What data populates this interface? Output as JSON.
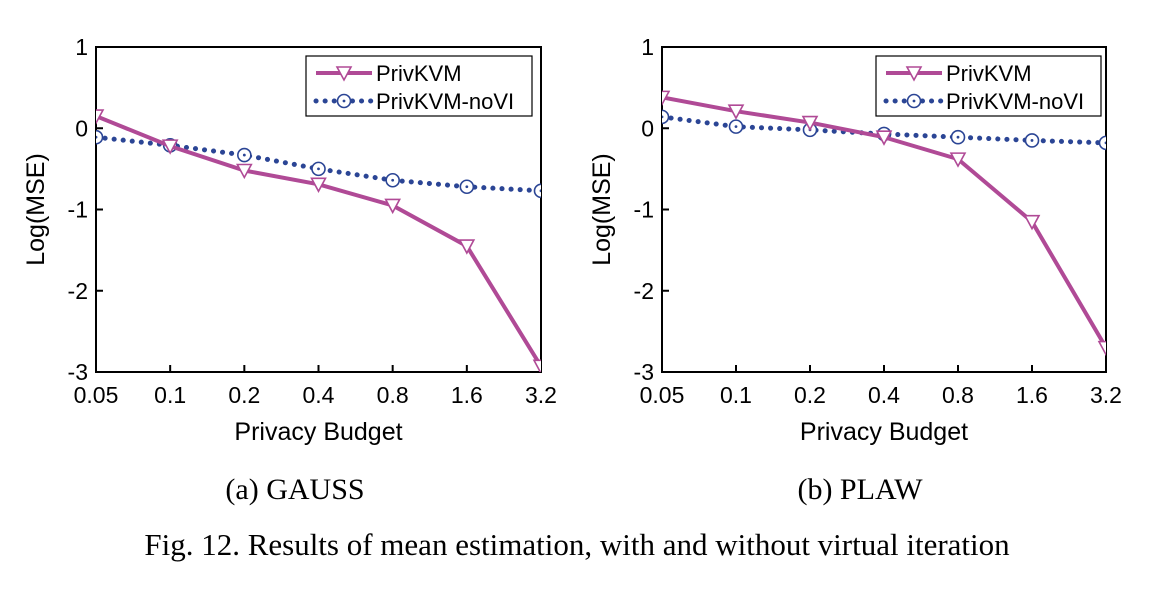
{
  "figure_caption": "Fig. 12.  Results of mean estimation, with and without virtual iteration",
  "colors": {
    "privkvm": "#b04a96",
    "privkvm_novi": "#2b4595",
    "axis": "#000000"
  },
  "chart_data": [
    {
      "type": "line",
      "subcaption": "(a) GAUSS",
      "xlabel": "Privacy Budget",
      "ylabel": "Log(MSE)",
      "x_scale": "log2",
      "categories": [
        "0.05",
        "0.1",
        "0.2",
        "0.4",
        "0.8",
        "1.6",
        "3.2"
      ],
      "ylim": [
        -3,
        1
      ],
      "yticks": [
        "1",
        "0",
        "-1",
        "-2",
        "-3"
      ],
      "legend_position": "top-right",
      "grid": false,
      "series": [
        {
          "name": "PrivKVM",
          "marker": "triangle-down",
          "line": "solid",
          "color": "#b04a96",
          "values": [
            0.15,
            -0.22,
            -0.52,
            -0.69,
            -0.95,
            -1.45,
            -2.93
          ]
        },
        {
          "name": "PrivKVM-noVI",
          "marker": "circle-dot",
          "line": "dotted",
          "color": "#2b4595",
          "values": [
            -0.11,
            -0.21,
            -0.33,
            -0.5,
            -0.64,
            -0.72,
            -0.77
          ]
        }
      ]
    },
    {
      "type": "line",
      "subcaption": "(b) PLAW",
      "xlabel": "Privacy Budget",
      "ylabel": "Log(MSE)",
      "x_scale": "log2",
      "categories": [
        "0.05",
        "0.1",
        "0.2",
        "0.4",
        "0.8",
        "1.6",
        "3.2"
      ],
      "ylim": [
        -3,
        1
      ],
      "yticks": [
        "1",
        "0",
        "-1",
        "-2",
        "-3"
      ],
      "legend_position": "top-right",
      "grid": false,
      "series": [
        {
          "name": "PrivKVM",
          "marker": "triangle-down",
          "line": "solid",
          "color": "#b04a96",
          "values": [
            0.38,
            0.21,
            0.07,
            -0.11,
            -0.38,
            -1.15,
            -2.7
          ]
        },
        {
          "name": "PrivKVM-noVI",
          "marker": "circle-dot",
          "line": "dotted",
          "color": "#2b4595",
          "values": [
            0.14,
            0.02,
            -0.02,
            -0.07,
            -0.11,
            -0.15,
            -0.18
          ]
        }
      ]
    }
  ]
}
